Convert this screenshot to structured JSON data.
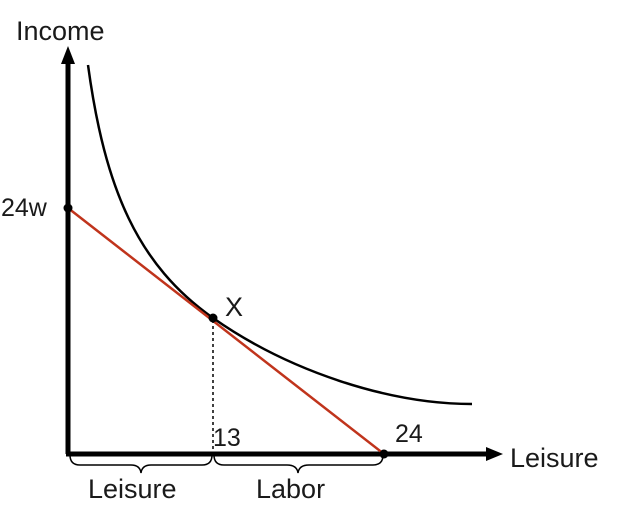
{
  "axes": {
    "y_label": "Income",
    "x_label": "Leisure"
  },
  "ticks": {
    "y_intercept": "24w",
    "x_intercept": "24",
    "tangent_x": "13"
  },
  "point_label": "X",
  "brackets": {
    "left": "Leisure",
    "right": "Labor"
  },
  "colors": {
    "budget_line": "#c0341c",
    "curve": "#000000",
    "axes": "#000000"
  }
}
